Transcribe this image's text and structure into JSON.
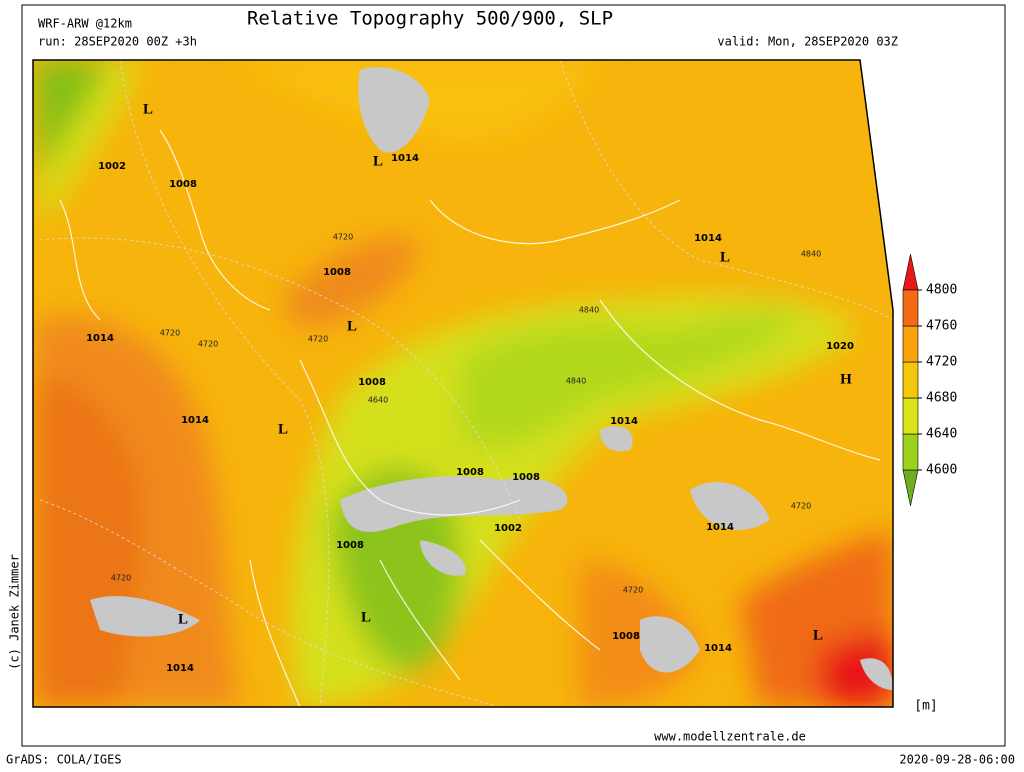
{
  "header": {
    "model": "WRF-ARW @12km",
    "run": "run: 28SEP2020 00Z +3h",
    "title": "Relative Topography 500/900, SLP",
    "valid": "valid: Mon, 28SEP2020 03Z"
  },
  "map": {
    "labels": [
      "L",
      1002,
      1008,
      "L",
      1014,
      4720,
      1008,
      1014,
      "L",
      4840,
      1014,
      4720,
      4720,
      4720,
      "L",
      4840,
      1020,
      "H",
      1008,
      4640,
      4840,
      1014,
      "L",
      1014,
      1008,
      1008,
      4720,
      1014,
      1002,
      1008,
      4720,
      4720,
      "L",
      "L",
      1008,
      1014,
      "L",
      1014
    ]
  },
  "colorbar": {
    "ticks": [
      4600,
      4640,
      4680,
      4720,
      4760,
      4800
    ],
    "colors": [
      "#6fae1e",
      "#9cd21e",
      "#dde41a",
      "#f4c80a",
      "#f9a20e",
      "#f46a12",
      "#e81818"
    ],
    "unit": "[m]"
  },
  "footer": {
    "copyright": "(c) Janek Zimmer",
    "site": "www.modellzentrale.de",
    "software": "GrADS: COLA/IGES",
    "timestamp": "2020-09-28-06:00"
  }
}
